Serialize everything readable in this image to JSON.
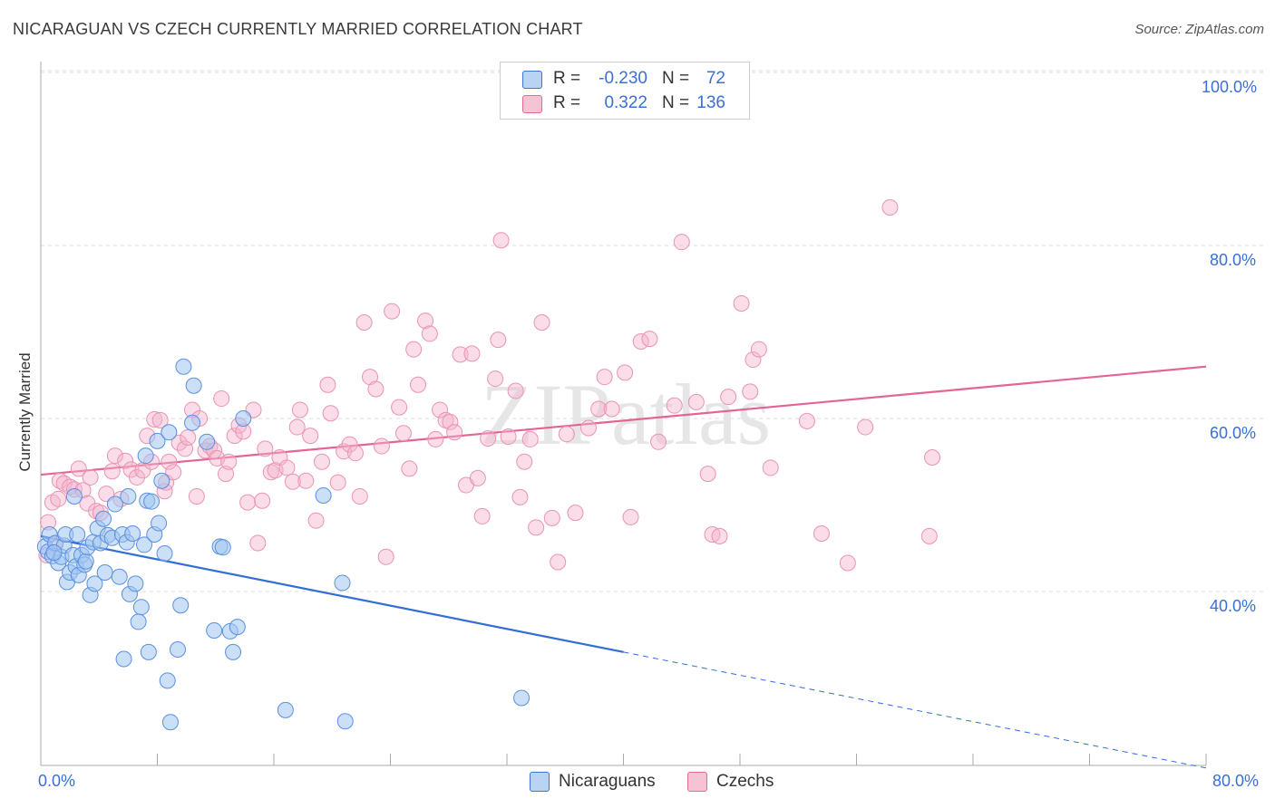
{
  "title": "NICARAGUAN VS CZECH CURRENTLY MARRIED CORRELATION CHART",
  "source": "Source: ZipAtlas.com",
  "colors": {
    "blue": "#3a75d8",
    "blue_fill": "#b9d3f3",
    "pink": "#e46a95",
    "pink_fill": "#f6c3d4",
    "tick": "#3a6fd8",
    "grid": "#dddddd"
  },
  "legend": {
    "rows": [
      {
        "r_label": "R =",
        "r_value": "-0.230",
        "n_label": "N =",
        "n_value": "72",
        "series": "Nicaraguans"
      },
      {
        "r_label": "R =",
        "r_value": "0.322",
        "n_label": "N =",
        "n_value": "136",
        "series": "Czechs"
      }
    ]
  },
  "watermark": "ZIPatlas",
  "chart_data": {
    "type": "scatter",
    "title": "NICARAGUAN VS CZECH CURRENTLY MARRIED CORRELATION CHART",
    "xlabel": "",
    "ylabel": "Currently Married",
    "xlim": [
      0,
      80
    ],
    "ylim": [
      20,
      102
    ],
    "x_tick_labels": [
      "0.0%",
      "80.0%"
    ],
    "y_ticks": [
      40,
      60,
      80,
      100
    ],
    "y_tick_labels": [
      "40.0%",
      "60.0%",
      "80.0%",
      "100.0%"
    ],
    "grid": true,
    "legend_position": "bottom",
    "series": [
      {
        "name": "Nicaraguans",
        "r": -0.23,
        "n": 72,
        "trend": {
          "x": [
            0,
            40
          ],
          "y": [
            46.4,
            33.0
          ],
          "dashed_extension_to": [
            80,
            19.6
          ]
        },
        "points": [
          [
            0.3,
            45.2
          ],
          [
            0.5,
            44.6
          ],
          [
            0.6,
            46.6
          ],
          [
            0.8,
            44.1
          ],
          [
            1.0,
            45.6
          ],
          [
            1.2,
            43.3
          ],
          [
            1.4,
            44.0
          ],
          [
            1.6,
            45.3
          ],
          [
            1.7,
            46.6
          ],
          [
            1.8,
            41.1
          ],
          [
            2.0,
            42.2
          ],
          [
            2.2,
            44.2
          ],
          [
            2.4,
            42.9
          ],
          [
            2.5,
            46.6
          ],
          [
            2.6,
            41.9
          ],
          [
            2.8,
            44.2
          ],
          [
            3.0,
            43.1
          ],
          [
            3.1,
            43.5
          ],
          [
            3.2,
            45.1
          ],
          [
            3.4,
            39.6
          ],
          [
            3.6,
            45.7
          ],
          [
            3.7,
            40.9
          ],
          [
            3.9,
            47.3
          ],
          [
            4.1,
            45.6
          ],
          [
            4.3,
            48.4
          ],
          [
            4.4,
            42.2
          ],
          [
            4.6,
            46.5
          ],
          [
            4.9,
            46.2
          ],
          [
            5.1,
            50.1
          ],
          [
            5.4,
            41.7
          ],
          [
            5.6,
            46.6
          ],
          [
            5.9,
            45.7
          ],
          [
            6.1,
            39.7
          ],
          [
            6.3,
            46.7
          ],
          [
            6.5,
            40.9
          ],
          [
            6.7,
            36.5
          ],
          [
            6.9,
            38.2
          ],
          [
            7.1,
            45.4
          ],
          [
            7.2,
            55.7
          ],
          [
            7.3,
            50.5
          ],
          [
            7.6,
            50.4
          ],
          [
            7.8,
            46.6
          ],
          [
            8.0,
            57.4
          ],
          [
            8.1,
            47.9
          ],
          [
            8.3,
            52.8
          ],
          [
            8.5,
            44.4
          ],
          [
            8.8,
            58.4
          ],
          [
            9.4,
            33.3
          ],
          [
            9.6,
            38.4
          ],
          [
            9.8,
            66.0
          ],
          [
            10.4,
            59.5
          ],
          [
            10.5,
            63.8
          ],
          [
            11.4,
            57.3
          ],
          [
            11.9,
            35.5
          ],
          [
            12.3,
            45.2
          ],
          [
            12.5,
            45.1
          ],
          [
            13.0,
            35.4
          ],
          [
            13.2,
            33.0
          ],
          [
            13.5,
            35.9
          ],
          [
            13.9,
            60.0
          ],
          [
            2.3,
            51.0
          ],
          [
            6.0,
            51.0
          ],
          [
            5.7,
            32.2
          ],
          [
            7.4,
            33.0
          ],
          [
            8.7,
            29.7
          ],
          [
            8.9,
            24.9
          ],
          [
            16.8,
            26.3
          ],
          [
            19.4,
            51.1
          ],
          [
            20.7,
            41.0
          ],
          [
            20.9,
            25.0
          ],
          [
            33.0,
            27.7
          ],
          [
            0.9,
            44.5
          ]
        ]
      },
      {
        "name": "Czechs",
        "r": 0.322,
        "n": 136,
        "trend": {
          "x": [
            0,
            80
          ],
          "y": [
            53.5,
            66.0
          ]
        },
        "points": [
          [
            0.4,
            44.2
          ],
          [
            0.5,
            48.0
          ],
          [
            0.8,
            50.3
          ],
          [
            1.0,
            45.5
          ],
          [
            1.2,
            50.7
          ],
          [
            1.3,
            52.8
          ],
          [
            1.6,
            52.5
          ],
          [
            2.0,
            52.1
          ],
          [
            2.3,
            51.8
          ],
          [
            2.6,
            54.2
          ],
          [
            2.9,
            51.7
          ],
          [
            3.2,
            50.2
          ],
          [
            3.4,
            53.2
          ],
          [
            3.8,
            49.3
          ],
          [
            4.1,
            49.1
          ],
          [
            4.5,
            51.3
          ],
          [
            4.9,
            53.9
          ],
          [
            5.1,
            55.7
          ],
          [
            5.5,
            50.7
          ],
          [
            5.8,
            55.1
          ],
          [
            6.2,
            54.1
          ],
          [
            6.6,
            53.2
          ],
          [
            7.0,
            54.0
          ],
          [
            7.3,
            58.0
          ],
          [
            7.6,
            55.0
          ],
          [
            7.8,
            59.9
          ],
          [
            8.2,
            59.8
          ],
          [
            8.5,
            51.6
          ],
          [
            8.6,
            52.6
          ],
          [
            8.8,
            55.0
          ],
          [
            9.1,
            53.8
          ],
          [
            9.5,
            57.2
          ],
          [
            9.9,
            56.5
          ],
          [
            10.1,
            57.8
          ],
          [
            10.4,
            61.0
          ],
          [
            10.7,
            51.0
          ],
          [
            10.9,
            60.0
          ],
          [
            11.3,
            56.3
          ],
          [
            11.6,
            56.8
          ],
          [
            11.9,
            56.3
          ],
          [
            12.1,
            55.4
          ],
          [
            12.4,
            62.3
          ],
          [
            12.7,
            53.6
          ],
          [
            12.9,
            55.0
          ],
          [
            13.3,
            58.0
          ],
          [
            13.6,
            59.2
          ],
          [
            13.9,
            58.5
          ],
          [
            14.2,
            50.3
          ],
          [
            14.6,
            61.0
          ],
          [
            14.9,
            45.6
          ],
          [
            15.2,
            50.5
          ],
          [
            15.4,
            56.5
          ],
          [
            15.8,
            53.8
          ],
          [
            16.1,
            54.0
          ],
          [
            16.4,
            55.5
          ],
          [
            16.9,
            54.3
          ],
          [
            17.3,
            52.7
          ],
          [
            17.6,
            59.0
          ],
          [
            17.8,
            61.0
          ],
          [
            18.2,
            52.8
          ],
          [
            18.5,
            58.0
          ],
          [
            18.9,
            48.2
          ],
          [
            19.3,
            55.0
          ],
          [
            19.7,
            63.9
          ],
          [
            19.9,
            60.6
          ],
          [
            20.4,
            52.6
          ],
          [
            20.8,
            56.2
          ],
          [
            21.2,
            57.0
          ],
          [
            21.6,
            56.0
          ],
          [
            21.9,
            51.0
          ],
          [
            22.2,
            71.1
          ],
          [
            22.6,
            64.8
          ],
          [
            23.0,
            63.4
          ],
          [
            23.4,
            56.8
          ],
          [
            23.7,
            44.0
          ],
          [
            24.1,
            72.4
          ],
          [
            24.6,
            61.3
          ],
          [
            24.9,
            58.3
          ],
          [
            25.3,
            54.2
          ],
          [
            25.6,
            68.0
          ],
          [
            25.9,
            63.9
          ],
          [
            26.4,
            71.3
          ],
          [
            26.7,
            69.8
          ],
          [
            27.1,
            57.6
          ],
          [
            27.4,
            61.0
          ],
          [
            27.8,
            59.8
          ],
          [
            28.1,
            59.6
          ],
          [
            28.4,
            58.4
          ],
          [
            28.8,
            67.4
          ],
          [
            29.2,
            52.3
          ],
          [
            29.6,
            67.5
          ],
          [
            30.0,
            53.1
          ],
          [
            30.3,
            48.7
          ],
          [
            30.7,
            57.7
          ],
          [
            31.2,
            64.6
          ],
          [
            31.4,
            69.1
          ],
          [
            31.6,
            80.6
          ],
          [
            32.1,
            57.9
          ],
          [
            32.6,
            63.2
          ],
          [
            32.9,
            50.9
          ],
          [
            33.2,
            55.0
          ],
          [
            33.6,
            57.6
          ],
          [
            34.0,
            47.4
          ],
          [
            34.4,
            71.1
          ],
          [
            35.1,
            48.5
          ],
          [
            35.5,
            43.4
          ],
          [
            36.1,
            58.2
          ],
          [
            36.7,
            49.1
          ],
          [
            37.6,
            58.9
          ],
          [
            38.3,
            61.1
          ],
          [
            38.7,
            64.8
          ],
          [
            39.2,
            61.1
          ],
          [
            40.1,
            65.3
          ],
          [
            40.5,
            48.6
          ],
          [
            41.2,
            68.9
          ],
          [
            41.8,
            69.2
          ],
          [
            42.4,
            57.3
          ],
          [
            43.5,
            61.5
          ],
          [
            44.0,
            80.4
          ],
          [
            45.0,
            61.9
          ],
          [
            45.8,
            53.6
          ],
          [
            46.1,
            46.6
          ],
          [
            46.6,
            46.4
          ],
          [
            47.2,
            62.5
          ],
          [
            48.1,
            73.3
          ],
          [
            48.7,
            63.1
          ],
          [
            48.9,
            66.8
          ],
          [
            49.3,
            68.0
          ],
          [
            50.1,
            54.3
          ],
          [
            52.6,
            59.7
          ],
          [
            53.6,
            46.7
          ],
          [
            55.4,
            43.3
          ],
          [
            56.6,
            59.0
          ],
          [
            58.3,
            84.4
          ],
          [
            61.0,
            46.4
          ],
          [
            61.2,
            55.5
          ]
        ]
      }
    ]
  },
  "bottom_legend": [
    "Nicaraguans",
    "Czechs"
  ]
}
